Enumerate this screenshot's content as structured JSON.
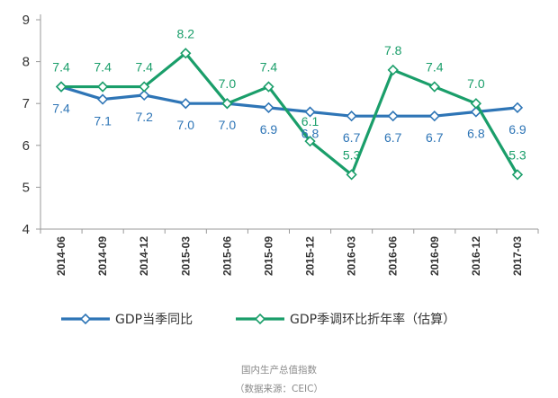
{
  "chart_data": {
    "type": "line",
    "title": "",
    "xlabel": "",
    "ylabel": "",
    "categories": [
      "2014-06",
      "2014-09",
      "2014-12",
      "2015-03",
      "2015-06",
      "2015-09",
      "2015-12",
      "2016-03",
      "2016-06",
      "2016-09",
      "2016-12",
      "2017-03"
    ],
    "ylim": [
      4,
      9
    ],
    "yticks": [
      4,
      5,
      6,
      7,
      8,
      9
    ],
    "grid": false,
    "legend_position": "bottom",
    "series": [
      {
        "name": "GDP当季同比",
        "color": "#2e75b6",
        "marker": "diamond",
        "values": [
          7.4,
          7.1,
          7.2,
          7.0,
          7.0,
          6.9,
          6.8,
          6.7,
          6.7,
          6.7,
          6.8,
          6.9
        ],
        "labels": [
          "7.4",
          "7.1",
          "7.2",
          "7.0",
          "7.0",
          "6.9",
          "6.8",
          "6.7",
          "6.7",
          "6.7",
          "6.8",
          "6.9"
        ]
      },
      {
        "name": "GDP季调环比折年率（估算）",
        "color": "#1a9e6a",
        "marker": "diamond",
        "values": [
          7.4,
          7.4,
          7.4,
          8.2,
          7.0,
          7.4,
          6.1,
          5.3,
          7.8,
          7.4,
          7.0,
          5.3
        ],
        "labels": [
          "7.4",
          "7.4",
          "7.4",
          "8.2",
          "7.0",
          "7.4",
          "6.1",
          "5.3",
          "7.8",
          "7.4",
          "7.0",
          "5.3"
        ]
      }
    ]
  },
  "caption": {
    "line1": "国内生产总值指数",
    "line2": "（数据来源：CEIC）"
  }
}
